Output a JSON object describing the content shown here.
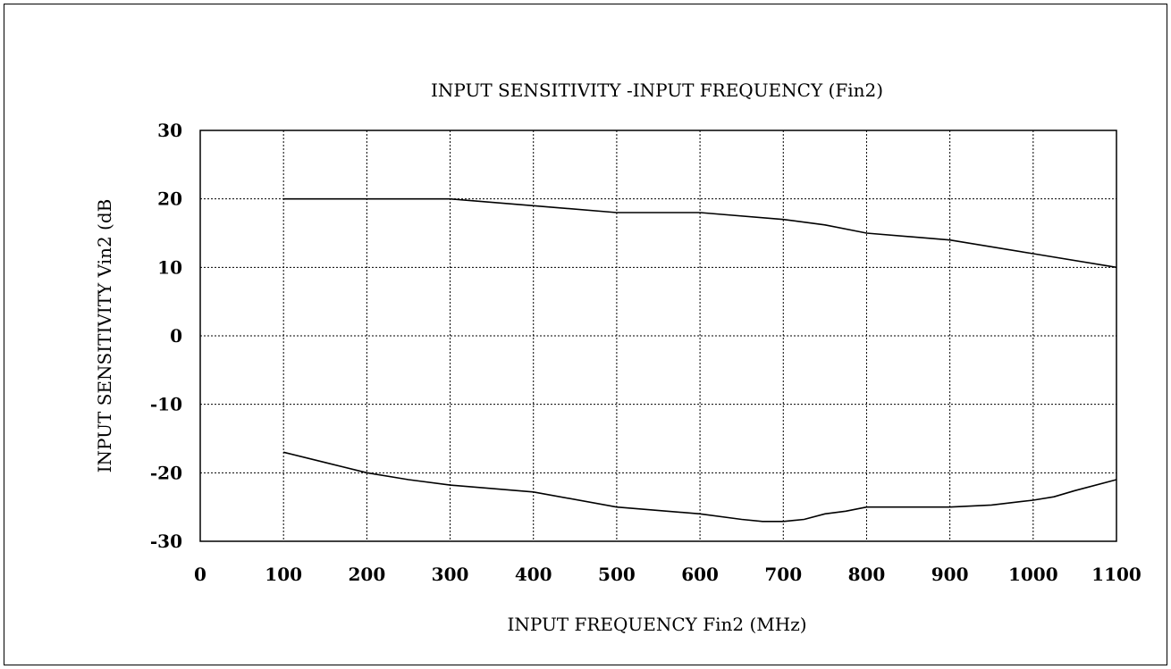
{
  "chart_data": {
    "type": "line",
    "title": "INPUT SENSITIVITY -INPUT FREQUENCY (Fin2)",
    "xlabel": "INPUT FREQUENCY Fin2 (MHz)",
    "ylabel": "INPUT SENSITIVITY Vin2 (dB",
    "xlim": [
      0,
      1100
    ],
    "ylim": [
      -30,
      30
    ],
    "xticks": [
      "0",
      "100",
      "200",
      "300",
      "400",
      "500",
      "600",
      "700",
      "800",
      "900",
      "1000",
      "1100"
    ],
    "yticks": [
      "30",
      "20",
      "10",
      "0",
      "-10",
      "-20",
      "-30"
    ],
    "grid": true,
    "series": [
      {
        "x": [
          100,
          200,
          300,
          400,
          500,
          600,
          700,
          750,
          800,
          900,
          1000,
          1100
        ],
        "y": [
          20,
          20,
          20,
          19,
          18,
          18,
          17,
          16.2,
          15,
          14,
          12,
          10
        ]
      },
      {
        "x": [
          100,
          150,
          200,
          250,
          300,
          400,
          500,
          600,
          650,
          675,
          700,
          725,
          750,
          775,
          800,
          900,
          950,
          1000,
          1025,
          1050,
          1100
        ],
        "y": [
          -17,
          -18.5,
          -20,
          -21,
          -21.8,
          -22.8,
          -25,
          -26,
          -26.8,
          -27.1,
          -27.1,
          -26.8,
          -26,
          -25.6,
          -25,
          -25,
          -24.7,
          -24,
          -23.5,
          -22.6,
          -21
        ]
      }
    ]
  }
}
